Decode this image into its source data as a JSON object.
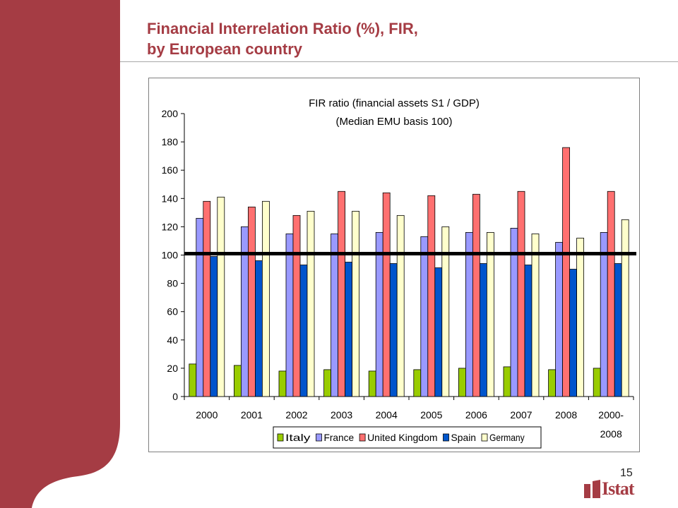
{
  "slide": {
    "title_line1": "Financial Interrelation Ratio (%), FIR,",
    "title_line2": "by European country",
    "page_number": "15",
    "logo_text": "Istat",
    "accent_color": "#a53c44"
  },
  "chart_data": {
    "type": "bar",
    "title": "FIR ratio (financial assets S1 / GDP)",
    "subtitle": "(Median EMU basis 100)",
    "categories": [
      [
        "2000"
      ],
      [
        "2001"
      ],
      [
        "2002"
      ],
      [
        "2003"
      ],
      [
        "2004"
      ],
      [
        "2005"
      ],
      [
        "2006"
      ],
      [
        "2007"
      ],
      [
        "2008"
      ],
      [
        "2000-",
        "2008"
      ]
    ],
    "series": [
      {
        "name": "Italy",
        "color": "#99cc00",
        "values": [
          23,
          22,
          18,
          19,
          18,
          19,
          20,
          21,
          19,
          20
        ]
      },
      {
        "name": "France",
        "color": "#9999ff",
        "values": [
          126,
          120,
          115,
          115,
          116,
          113,
          116,
          119,
          109,
          116
        ]
      },
      {
        "name": "United Kingdom",
        "color": "#ff7070",
        "values": [
          138,
          134,
          128,
          145,
          144,
          142,
          143,
          145,
          176,
          145
        ]
      },
      {
        "name": "Spain",
        "color": "#0055cc",
        "values": [
          99,
          96,
          93,
          95,
          94,
          91,
          94,
          93,
          90,
          94
        ]
      },
      {
        "name": "Germany",
        "color": "#ffffcc",
        "values": [
          141,
          138,
          131,
          131,
          128,
          120,
          116,
          115,
          112,
          125
        ]
      }
    ],
    "reference_line": 101,
    "ylim": [
      0,
      200
    ],
    "yticks": [
      "0",
      "20",
      "40",
      "60",
      "80",
      "100",
      "120",
      "140",
      "160",
      "180",
      "200"
    ],
    "grid": false,
    "legend_position": "bottom"
  }
}
